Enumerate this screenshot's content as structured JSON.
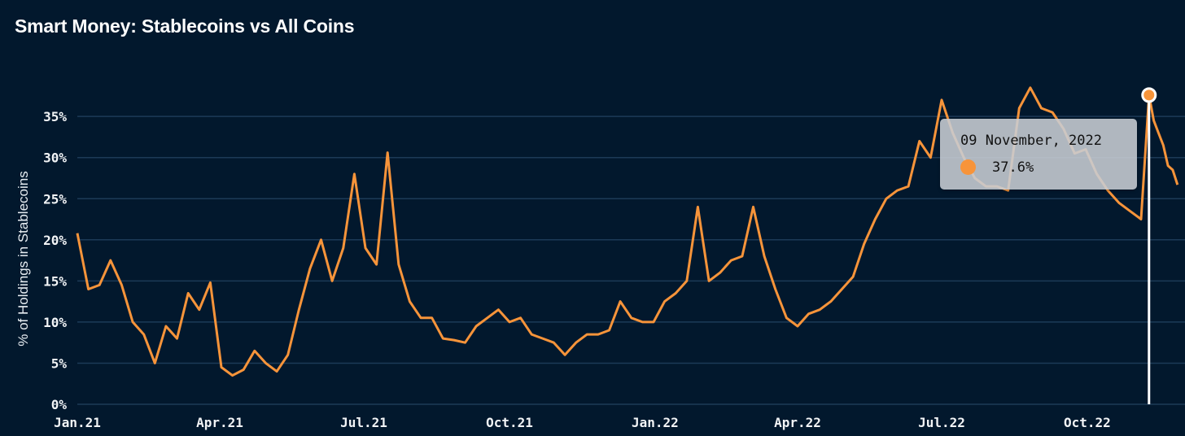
{
  "title": "Smart Money: Stablecoins vs All Coins",
  "colors": {
    "background": "#02182d",
    "line": "#f7943a",
    "grid": "#1c3a57",
    "cursor": "#ffffff"
  },
  "tooltip": {
    "date": "09 November, 2022",
    "value": "37.6%"
  },
  "chart_data": {
    "type": "line",
    "title": "Smart Money: Stablecoins vs All Coins",
    "xlabel": "",
    "ylabel": "% of Holdings in Stablecoins",
    "ylim": [
      0,
      38
    ],
    "grid": true,
    "y_ticks": [
      "0%",
      "5%",
      "10%",
      "15%",
      "20%",
      "25%",
      "30%",
      "35%"
    ],
    "y_tick_values": [
      0,
      5,
      10,
      15,
      20,
      25,
      30,
      35
    ],
    "x_ticks": [
      "Jan.21",
      "Apr.21",
      "Jul.21",
      "Oct.21",
      "Jan.22",
      "Apr.22",
      "Jul.22",
      "Oct.22"
    ],
    "x_tick_dates": [
      "2021-01-01",
      "2021-04-01",
      "2021-07-01",
      "2021-10-01",
      "2022-01-01",
      "2022-04-01",
      "2022-07-01",
      "2022-10-01"
    ],
    "highlight": {
      "date": "2022-11-09",
      "value": 37.6
    },
    "series": [
      {
        "dates": [
          "2021-01-01",
          "2021-01-08",
          "2021-01-15",
          "2021-01-22",
          "2021-01-29",
          "2021-02-05",
          "2021-02-12",
          "2021-02-19",
          "2021-02-26",
          "2021-03-05",
          "2021-03-12",
          "2021-03-19",
          "2021-03-26",
          "2021-04-02",
          "2021-04-09",
          "2021-04-16",
          "2021-04-23",
          "2021-04-30",
          "2021-05-07",
          "2021-05-14",
          "2021-05-21",
          "2021-05-28",
          "2021-06-04",
          "2021-06-11",
          "2021-06-18",
          "2021-06-25",
          "2021-07-02",
          "2021-07-09",
          "2021-07-16",
          "2021-07-23",
          "2021-07-30",
          "2021-08-06",
          "2021-08-13",
          "2021-08-20",
          "2021-08-27",
          "2021-09-03",
          "2021-09-10",
          "2021-09-17",
          "2021-09-24",
          "2021-10-01",
          "2021-10-08",
          "2021-10-15",
          "2021-10-22",
          "2021-10-29",
          "2021-11-05",
          "2021-11-12",
          "2021-11-19",
          "2021-11-26",
          "2021-12-03",
          "2021-12-10",
          "2021-12-17",
          "2021-12-24",
          "2021-12-31",
          "2022-01-07",
          "2022-01-14",
          "2022-01-21",
          "2022-01-28",
          "2022-02-04",
          "2022-02-11",
          "2022-02-18",
          "2022-02-25",
          "2022-03-04",
          "2022-03-11",
          "2022-03-18",
          "2022-03-25",
          "2022-04-01",
          "2022-04-08",
          "2022-04-15",
          "2022-04-22",
          "2022-04-29",
          "2022-05-06",
          "2022-05-13",
          "2022-05-20",
          "2022-05-27",
          "2022-06-03",
          "2022-06-10",
          "2022-06-17",
          "2022-06-24",
          "2022-07-01",
          "2022-07-08",
          "2022-07-15",
          "2022-07-22",
          "2022-07-29",
          "2022-08-05",
          "2022-08-12",
          "2022-08-19",
          "2022-08-26",
          "2022-09-02",
          "2022-09-09",
          "2022-09-16",
          "2022-09-23",
          "2022-09-30",
          "2022-10-07",
          "2022-10-14",
          "2022-10-21",
          "2022-10-28",
          "2022-11-04",
          "2022-11-09",
          "2022-11-12",
          "2022-11-15",
          "2022-11-18",
          "2022-11-21",
          "2022-11-24",
          "2022-11-27"
        ],
        "values": [
          20.8,
          14.0,
          14.5,
          17.5,
          14.5,
          10.0,
          8.5,
          5.0,
          9.5,
          8.0,
          13.5,
          11.5,
          14.8,
          4.5,
          3.5,
          4.2,
          6.5,
          5.0,
          4.0,
          6.0,
          11.5,
          16.5,
          20.0,
          15.0,
          19.0,
          28.0,
          19.0,
          17.0,
          30.6,
          17.0,
          12.5,
          10.5,
          10.5,
          8.0,
          7.8,
          7.5,
          9.5,
          10.5,
          11.5,
          10.0,
          10.5,
          8.5,
          8.0,
          7.5,
          6.0,
          7.5,
          8.5,
          8.5,
          9.0,
          12.5,
          10.5,
          10.0,
          10.0,
          12.5,
          13.5,
          15.0,
          24.0,
          15.0,
          16.0,
          17.5,
          18.0,
          24.0,
          18.0,
          14.0,
          10.5,
          9.5,
          11.0,
          11.5,
          12.5,
          14.0,
          15.5,
          19.5,
          22.5,
          25.0,
          26.0,
          26.5,
          32.0,
          30.0,
          37.0,
          33.0,
          30.0,
          27.5,
          26.5,
          26.5,
          26.0,
          36.0,
          38.5,
          36.0,
          35.5,
          33.5,
          30.5,
          31.0,
          28.0,
          26.0,
          24.5,
          23.5,
          22.5,
          37.6,
          34.5,
          33.0,
          31.5,
          29.0,
          28.5,
          26.7
        ]
      }
    ]
  }
}
